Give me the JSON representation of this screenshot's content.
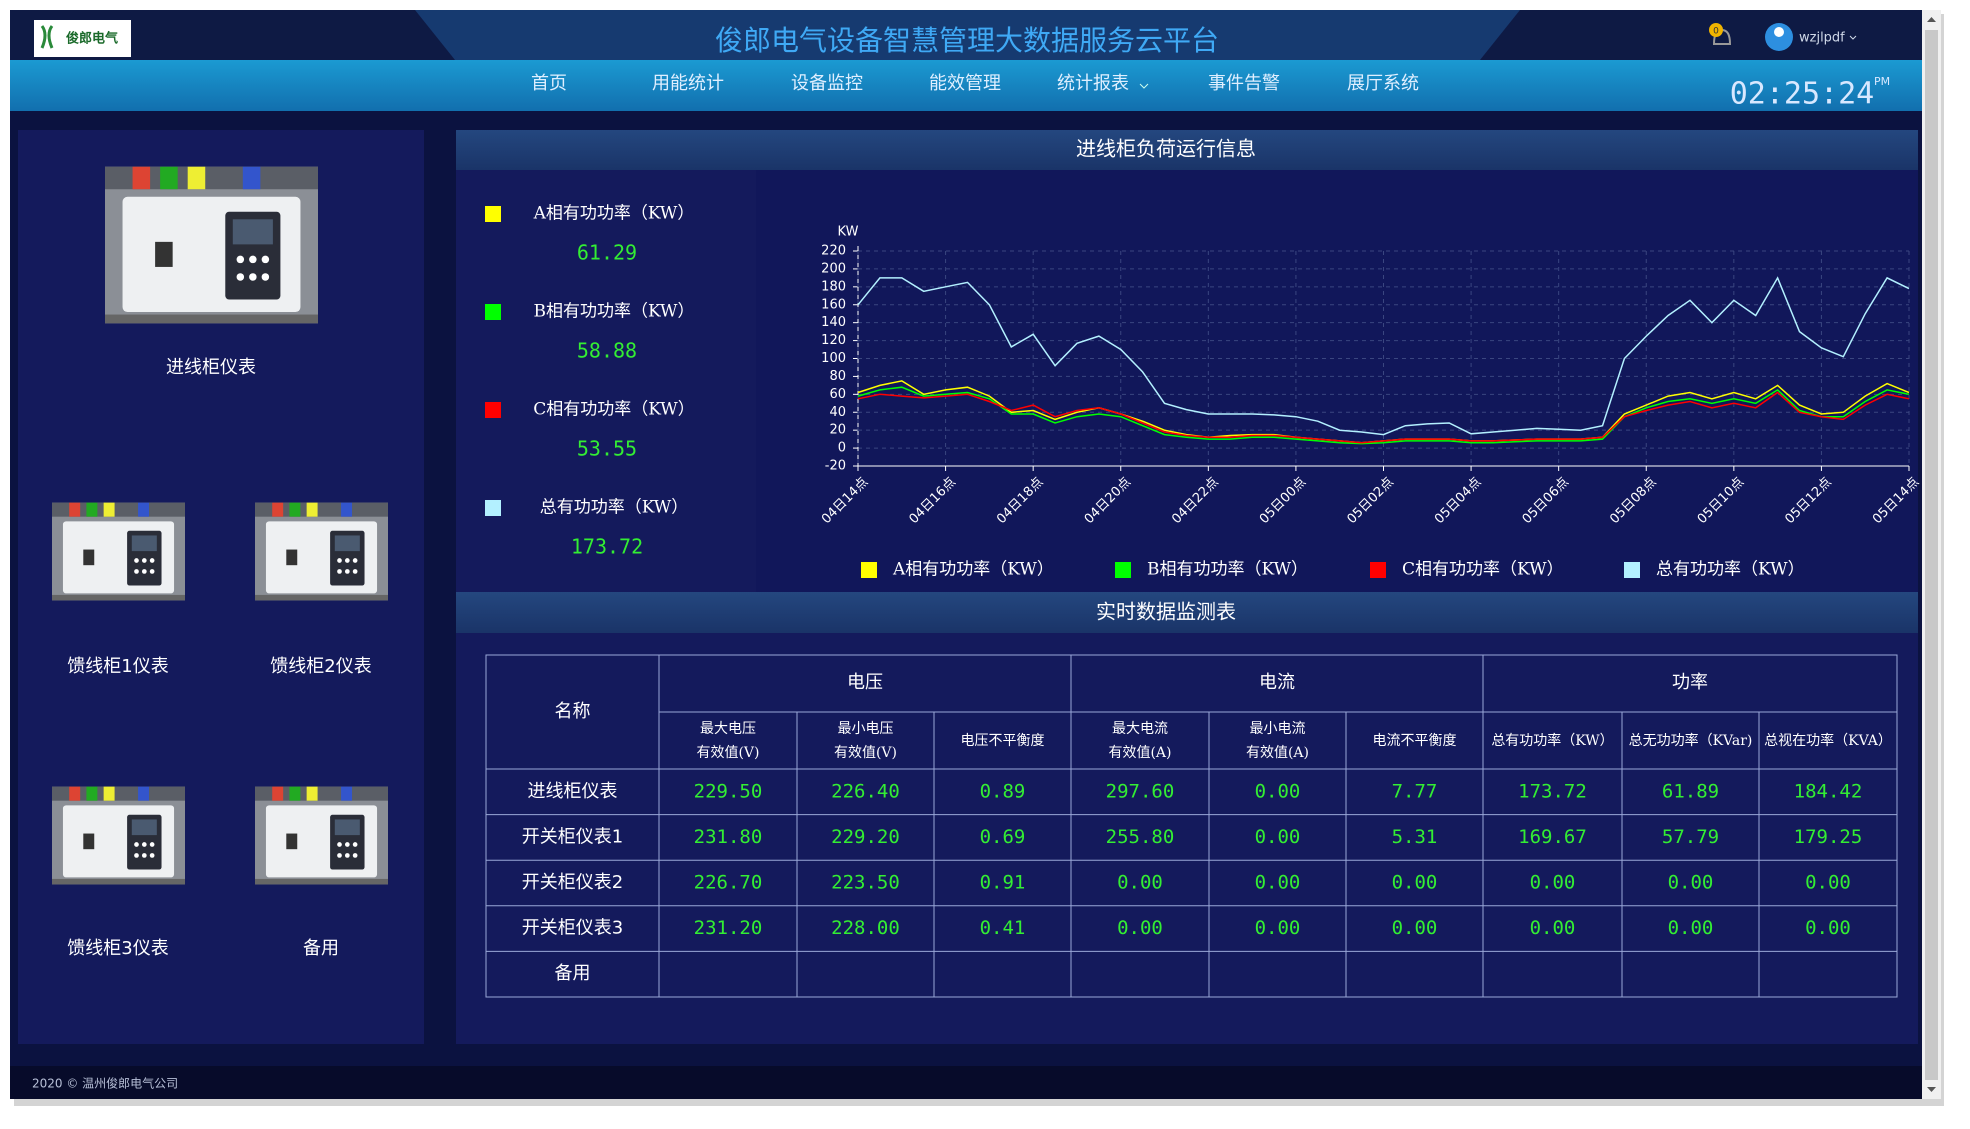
{
  "header": {
    "logo": "俊郎电气",
    "title": "俊郎电气设备智慧管理大数据服务云平台",
    "notifications": "0",
    "user": "wzjlpdf"
  },
  "nav": [
    "首页",
    "用能统计",
    "设备监控",
    "能效管理",
    "统计报表",
    "事件告警",
    "展厅系统"
  ],
  "clock": {
    "time": "02:25:24",
    "meridiem": "PM"
  },
  "devices": [
    "进线柜仪表",
    "馈线柜1仪表",
    "馈线柜2仪表",
    "馈线柜3仪表",
    "备用"
  ],
  "load_panel": {
    "title": "进线柜负荷运行信息",
    "readings": [
      "61.29",
      "58.88",
      "53.55",
      "173.72"
    ]
  },
  "chart_data": {
    "type": "line",
    "y_label": "KW",
    "categories": [
      "04日14点",
      null,
      null,
      null,
      "04日16点",
      null,
      null,
      null,
      "04日18点",
      null,
      null,
      null,
      "04日20点",
      null,
      null,
      null,
      "04日22点",
      null,
      null,
      null,
      "05日00点",
      null,
      null,
      null,
      "05日02点",
      null,
      null,
      null,
      "05日04点",
      null,
      null,
      null,
      "05日06点",
      null,
      null,
      null,
      "05日08点",
      null,
      null,
      null,
      "05日10点",
      null,
      null,
      null,
      "05日12点",
      null,
      null,
      null,
      "05日14点"
    ],
    "series": [
      {
        "name": "A相有功功率（KW）",
        "color": "#ffff00",
        "values": [
          62,
          70,
          75,
          60,
          65,
          68,
          58,
          40,
          42,
          32,
          40,
          45,
          38,
          30,
          20,
          15,
          12,
          14,
          15,
          15,
          12,
          10,
          8,
          6,
          8,
          10,
          10,
          10,
          8,
          8,
          9,
          10,
          10,
          10,
          12,
          38,
          48,
          58,
          62,
          55,
          62,
          55,
          70,
          48,
          38,
          40,
          58,
          72,
          62
        ]
      },
      {
        "name": "B相有功功率（KW）",
        "color": "#00ff00",
        "values": [
          58,
          65,
          68,
          58,
          60,
          62,
          55,
          38,
          38,
          28,
          35,
          38,
          35,
          25,
          15,
          12,
          10,
          10,
          12,
          12,
          10,
          8,
          6,
          5,
          6,
          8,
          8,
          8,
          6,
          6,
          7,
          8,
          8,
          8,
          10,
          35,
          45,
          52,
          55,
          50,
          55,
          50,
          65,
          42,
          35,
          35,
          52,
          65,
          60
        ]
      },
      {
        "name": "C相有功功率（KW）",
        "color": "#ff0000",
        "values": [
          55,
          60,
          58,
          56,
          58,
          60,
          52,
          42,
          48,
          35,
          42,
          45,
          38,
          28,
          18,
          14,
          12,
          12,
          14,
          14,
          12,
          10,
          8,
          6,
          8,
          10,
          10,
          10,
          8,
          8,
          9,
          10,
          10,
          10,
          12,
          35,
          42,
          48,
          52,
          45,
          50,
          45,
          62,
          40,
          35,
          32,
          48,
          60,
          55
        ]
      },
      {
        "name": "总有功功率（KW）",
        "color": "#b3f0ff",
        "values": [
          160,
          190,
          190,
          175,
          180,
          185,
          160,
          113,
          127,
          92,
          117,
          125,
          110,
          85,
          50,
          43,
          38,
          38,
          38,
          37,
          35,
          30,
          20,
          18,
          15,
          25,
          27,
          28,
          16,
          18,
          20,
          22,
          21,
          20,
          25,
          100,
          125,
          148,
          165,
          140,
          165,
          148,
          190,
          130,
          112,
          102,
          150,
          190,
          178
        ]
      }
    ],
    "ylim": [
      -20,
      220
    ],
    "yticks": [
      -20,
      0,
      20,
      40,
      60,
      80,
      100,
      120,
      140,
      160,
      180,
      200,
      220
    ],
    "grid": true
  },
  "table": {
    "title": "实时数据监测表",
    "name_header": "名称",
    "groups": [
      {
        "name": "电压",
        "columns": [
          [
            "最大电压",
            "有效值(V)"
          ],
          [
            "最小电压",
            "有效值(V)"
          ],
          [
            "电压不平衡度"
          ]
        ]
      },
      {
        "name": "电流",
        "columns": [
          [
            "最大电流",
            "有效值(A)"
          ],
          [
            "最小电流",
            "有效值(A)"
          ],
          [
            "电流不平衡度"
          ]
        ]
      },
      {
        "name": "功率",
        "columns": [
          [
            "总有功功率（KW）"
          ],
          [
            "总无功功率（KVar)"
          ],
          [
            "总视在功率（KVA）"
          ]
        ]
      }
    ],
    "rows": [
      {
        "name": "进线柜仪表",
        "values": [
          "229.50",
          "226.40",
          "0.89",
          "297.60",
          "0.00",
          "7.77",
          "173.72",
          "61.89",
          "184.42"
        ]
      },
      {
        "name": "开关柜仪表1",
        "values": [
          "231.80",
          "229.20",
          "0.69",
          "255.80",
          "0.00",
          "5.31",
          "169.67",
          "57.79",
          "179.25"
        ]
      },
      {
        "name": "开关柜仪表2",
        "values": [
          "226.70",
          "223.50",
          "0.91",
          "0.00",
          "0.00",
          "0.00",
          "0.00",
          "0.00",
          "0.00"
        ]
      },
      {
        "name": "开关柜仪表3",
        "values": [
          "231.20",
          "228.00",
          "0.41",
          "0.00",
          "0.00",
          "0.00",
          "0.00",
          "0.00",
          "0.00"
        ]
      },
      {
        "name": "备用",
        "values": []
      }
    ]
  },
  "footer": "2020 © 温州俊郎电气公司"
}
